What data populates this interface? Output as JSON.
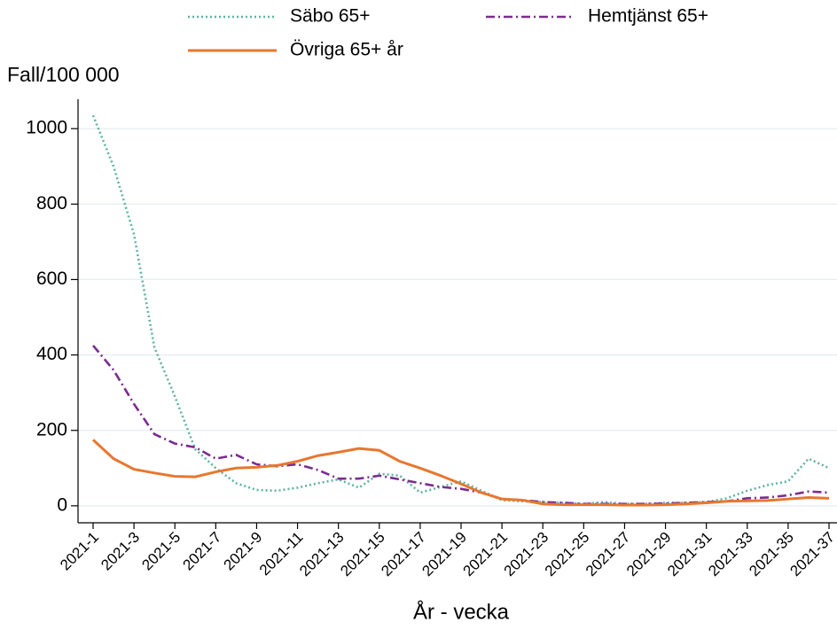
{
  "chart_data": {
    "type": "line",
    "ylabel": "Fall/100 000",
    "xlabel": "År - vecka",
    "categories": [
      "2021-1",
      null,
      "2021-3",
      null,
      "2021-5",
      null,
      "2021-7",
      null,
      "2021-9",
      null,
      "2021-11",
      null,
      "2021-13",
      null,
      "2021-15",
      null,
      "2021-17",
      null,
      "2021-19",
      null,
      "2021-21",
      null,
      "2021-23",
      null,
      "2021-25",
      null,
      "2021-27",
      null,
      "2021-29",
      null,
      "2021-31",
      null,
      "2021-33",
      null,
      "2021-35",
      null,
      "2021-37"
    ],
    "series": [
      {
        "name": "Säbo 65+",
        "color": "#5fb3a0",
        "linestyle": "dotted",
        "values": [
          1035,
          900,
          720,
          420,
          290,
          150,
          100,
          60,
          42,
          40,
          48,
          60,
          70,
          48,
          85,
          80,
          35,
          50,
          65,
          40,
          15,
          12,
          10,
          8,
          5,
          10,
          5,
          5,
          8,
          8,
          10,
          20,
          40,
          55,
          65,
          125,
          100
        ]
      },
      {
        "name": "Hemtjänst 65+",
        "color": "#7b2d8e",
        "linestyle": "dashdot",
        "values": [
          425,
          360,
          270,
          190,
          165,
          155,
          125,
          135,
          110,
          105,
          110,
          95,
          72,
          72,
          80,
          70,
          60,
          50,
          45,
          35,
          18,
          15,
          10,
          8,
          5,
          5,
          5,
          5,
          6,
          8,
          10,
          12,
          20,
          22,
          28,
          38,
          35
        ]
      },
      {
        "name": "Övriga 65+ år",
        "color": "#e8772e",
        "linestyle": "solid",
        "values": [
          175,
          125,
          97,
          87,
          78,
          77,
          90,
          100,
          102,
          107,
          118,
          133,
          142,
          152,
          147,
          118,
          100,
          80,
          58,
          35,
          18,
          15,
          5,
          3,
          3,
          3,
          2,
          2,
          3,
          5,
          8,
          12,
          13,
          14,
          18,
          22,
          20
        ]
      }
    ],
    "ylim": [
      -45,
      1078
    ],
    "yticks": [
      0,
      200,
      400,
      600,
      800,
      1000
    ],
    "grid": true
  }
}
